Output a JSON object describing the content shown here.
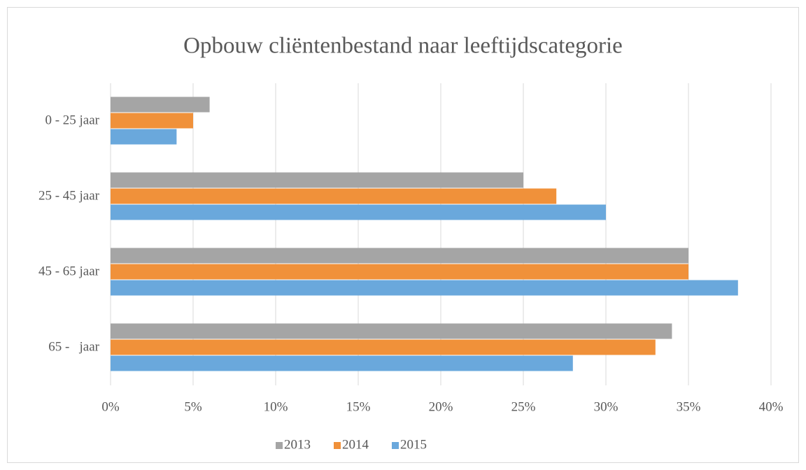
{
  "chart_data": {
    "type": "bar",
    "orientation": "horizontal",
    "title": "Opbouw cliëntenbestand naar leeftijdscategorie",
    "categories": [
      "0 - 25 jaar",
      "25 - 45 jaar",
      "45 - 65 jaar",
      "65 -   jaar"
    ],
    "series": [
      {
        "name": "2013",
        "color": "#a5a5a5",
        "values": [
          6,
          25,
          35,
          34
        ]
      },
      {
        "name": "2014",
        "color": "#f0913a",
        "values": [
          5,
          27,
          35,
          33
        ]
      },
      {
        "name": "2015",
        "color": "#6aa8dc",
        "values": [
          4,
          30,
          38,
          28
        ]
      }
    ],
    "xlim": [
      0,
      40
    ],
    "xticks": [
      {
        "value": 0,
        "label": "0%"
      },
      {
        "value": 5,
        "label": "5%"
      },
      {
        "value": 10,
        "label": "10%"
      },
      {
        "value": 15,
        "label": "15%"
      },
      {
        "value": 20,
        "label": "20%"
      },
      {
        "value": 25,
        "label": "25%"
      },
      {
        "value": 30,
        "label": "30%"
      },
      {
        "value": 35,
        "label": "35%"
      },
      {
        "value": 40,
        "label": "40%"
      }
    ],
    "grid": true,
    "legend": "bottom"
  }
}
